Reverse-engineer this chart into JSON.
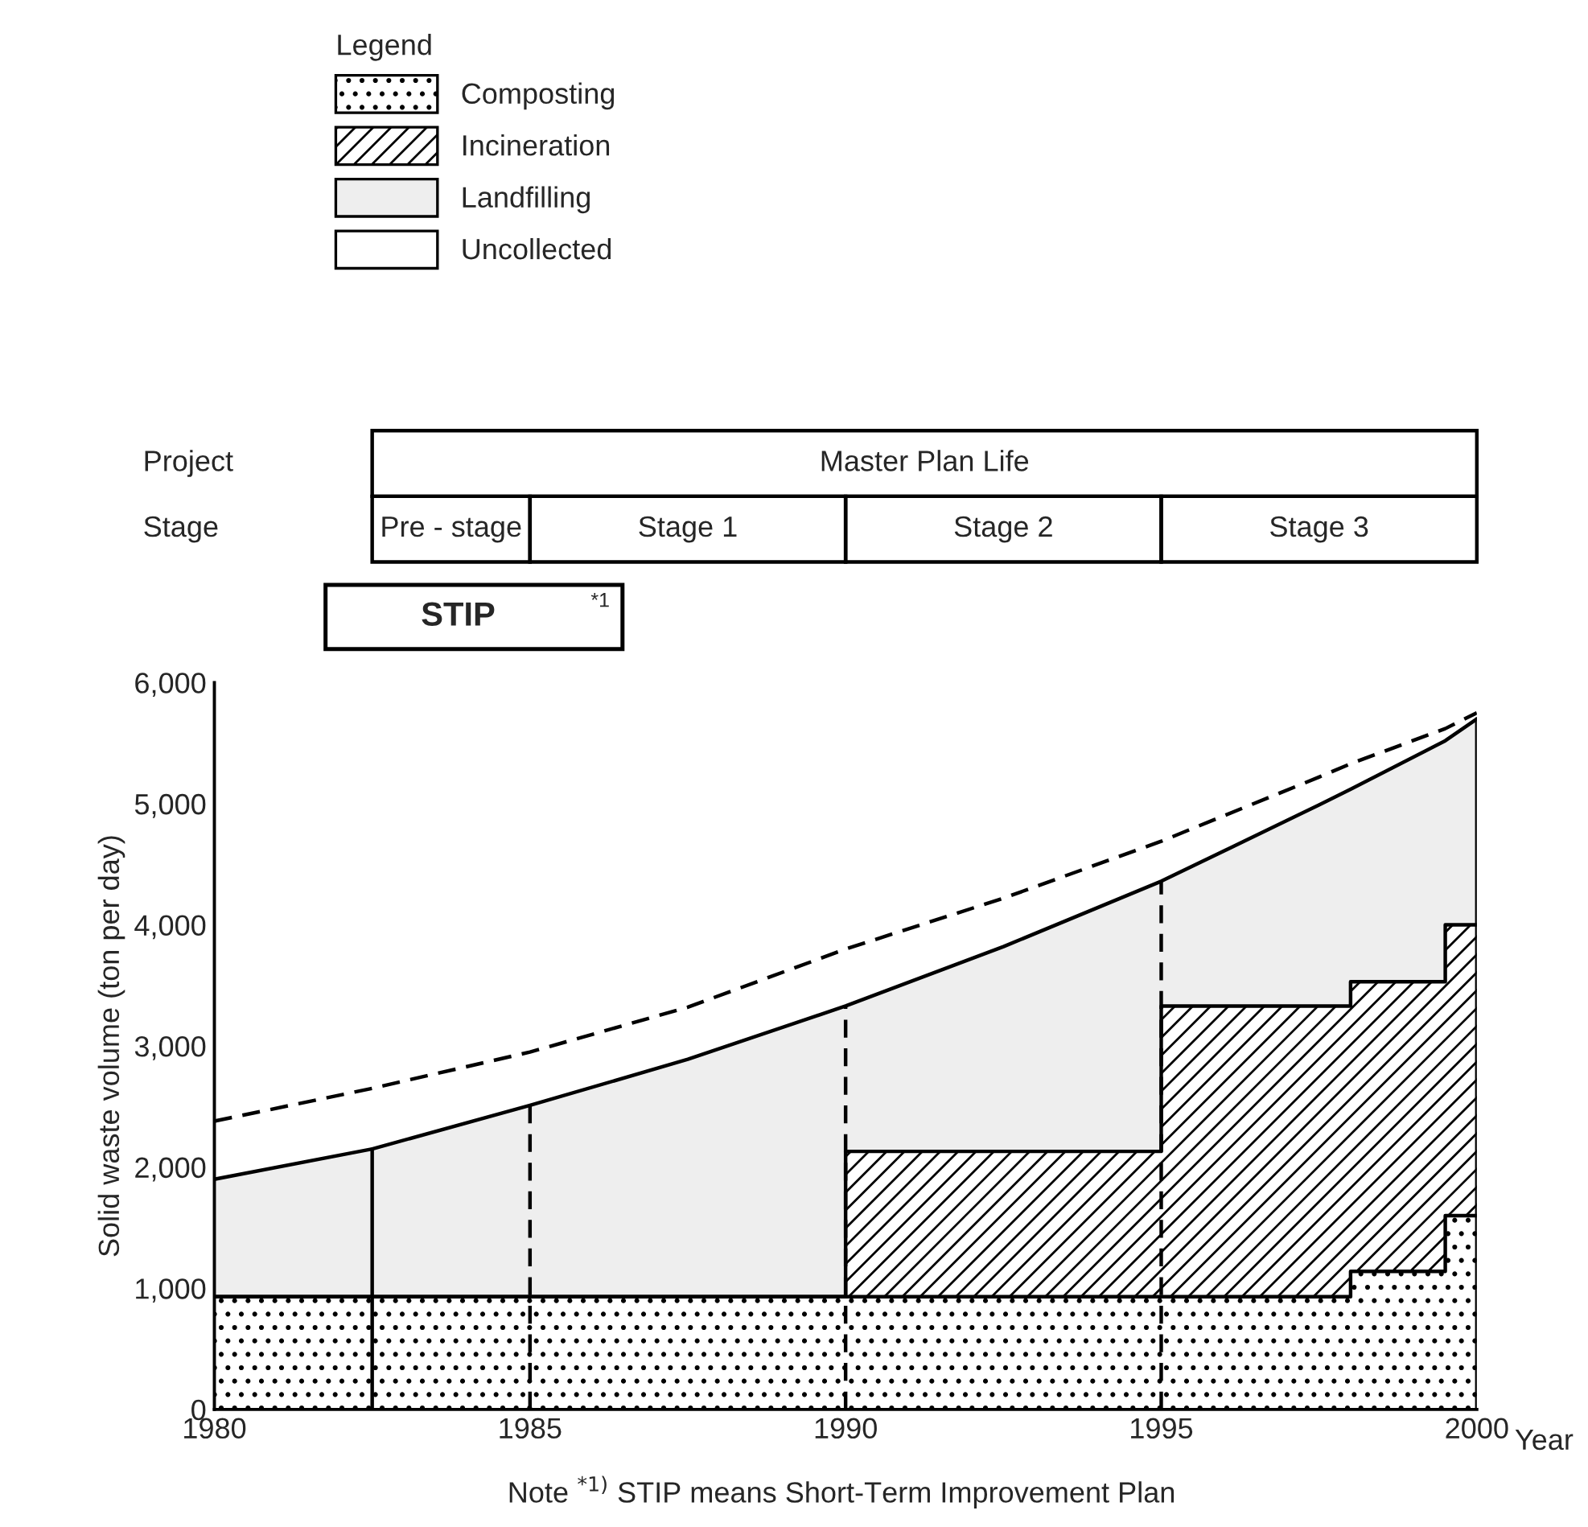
{
  "chart_data": {
    "type": "area",
    "stacked": true,
    "ylabel": "Solid waste volume (ton per day)",
    "xlabel": "Year",
    "legend_title": "Legend",
    "legend": "top left",
    "x": [
      1980,
      1982.5,
      1985,
      1987.5,
      1990,
      1990,
      1992.5,
      1995,
      1995,
      1997.5,
      1998,
      1998,
      1999.5,
      1999.5,
      2000
    ],
    "series": [
      {
        "name": "Composting",
        "color": "#ffffff",
        "values": [
          930,
          930,
          930,
          930,
          930,
          930,
          930,
          930,
          930,
          930,
          930,
          1140,
          1140,
          1600,
          1600
        ]
      },
      {
        "name": "Incineration",
        "color": "#ffffff",
        "values": [
          0,
          0,
          0,
          0,
          0,
          1200,
          1200,
          1200,
          2400,
          2400,
          2400,
          2390,
          2390,
          2400,
          2400
        ]
      },
      {
        "name": "Landfilling",
        "color": "#eeeeee",
        "values": [
          970,
          1220,
          1580,
          1960,
          2400,
          1200,
          1690,
          2230,
          1030,
          1660,
          1790,
          1590,
          1990,
          1520,
          1700
        ]
      },
      {
        "name": "Uncollected",
        "color": "#ffffff",
        "line_style": "dashed",
        "values": [
          480,
          500,
          440,
          430,
          470,
          470,
          400,
          330,
          330,
          230,
          210,
          210,
          100,
          100,
          50
        ]
      }
    ],
    "xlim": [
      1980,
      2000
    ],
    "xticks": [
      1980,
      1985,
      1990,
      1995,
      2000
    ],
    "ylim": [
      0,
      6000
    ],
    "yticks": [
      0,
      {
        "value": 1000,
        "label": "1,000"
      },
      {
        "value": 2000,
        "label": "2,000"
      },
      {
        "value": 3000,
        "label": "3,000"
      },
      {
        "value": 4000,
        "label": "4,000"
      },
      {
        "value": 5000,
        "label": "5,000"
      },
      {
        "value": 6000,
        "label": "6,000"
      }
    ],
    "ref_lines": [
      {
        "axis": "x",
        "value": 1982.5,
        "line_style": "solid"
      },
      {
        "axis": "x",
        "value": 1985,
        "line_style": "dashed"
      },
      {
        "axis": "x",
        "value": 1990,
        "line_style": "dashed"
      },
      {
        "axis": "x",
        "value": 1995,
        "line_style": "dashed"
      }
    ],
    "annotations": [
      "Project",
      "Stage",
      "Master Plan Life",
      "Pre - stage",
      "Stage 1",
      "Stage 2",
      "Stage 3",
      "STIP",
      "*1",
      "Note $^{*1)}$ STIP means Short-Term Improvement Plan"
    ]
  }
}
